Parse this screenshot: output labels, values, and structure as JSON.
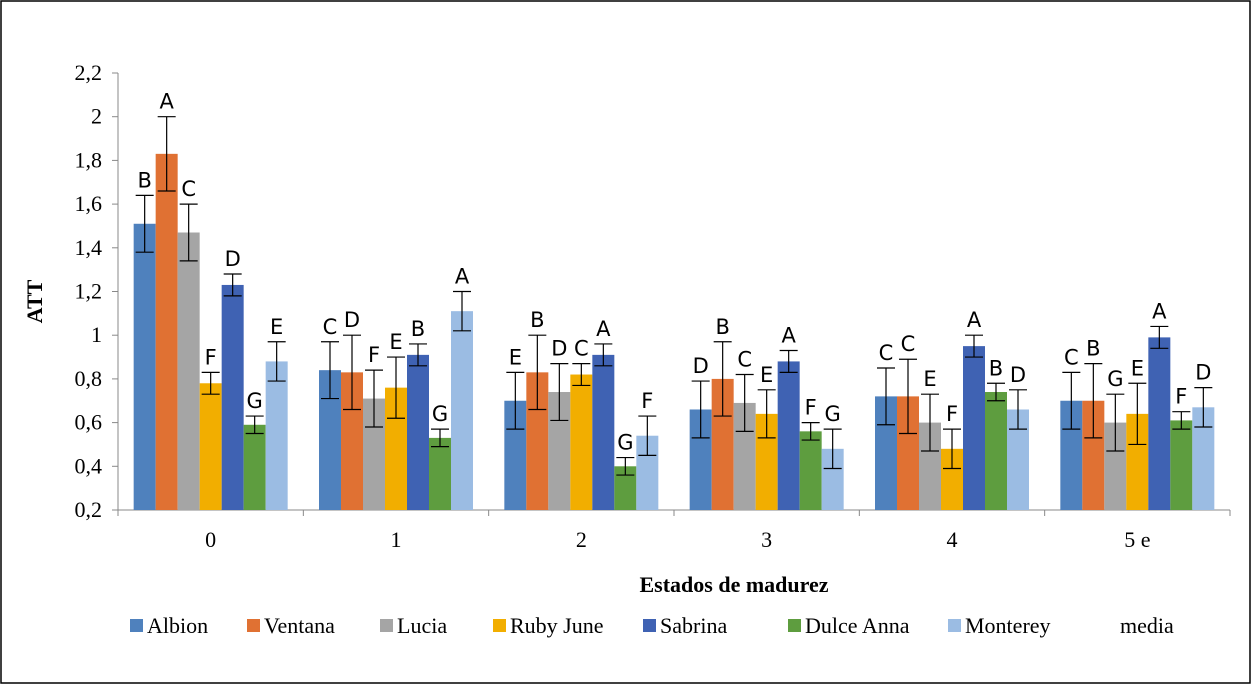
{
  "chart_data": {
    "type": "bar",
    "xlabel": "Estados de madurez",
    "ylabel": "ATT",
    "ylim": [
      0.2,
      2.2
    ],
    "ytick_step": 0.2,
    "grid": false,
    "legend_position": "bottom",
    "categories": [
      "0",
      "1",
      "2",
      "3",
      "4",
      "5 e"
    ],
    "yticks": [
      "0,2",
      "0,4",
      "0,6",
      "0,8",
      "1",
      "1,2",
      "1,4",
      "1,6",
      "1,8",
      "2",
      "2,2"
    ],
    "series": [
      {
        "name": "Albion",
        "color": "#4F81BD",
        "values": [
          1.51,
          0.84,
          0.7,
          0.66,
          0.72,
          0.7
        ],
        "errors": [
          0.13,
          0.13,
          0.13,
          0.13,
          0.13,
          0.13
        ],
        "letters": [
          "B",
          "C",
          "E",
          "D",
          "C",
          "C"
        ]
      },
      {
        "name": "Ventana",
        "color": "#E07133",
        "values": [
          1.83,
          0.83,
          0.83,
          0.8,
          0.72,
          0.7
        ],
        "errors": [
          0.17,
          0.17,
          0.17,
          0.17,
          0.17,
          0.17
        ],
        "letters": [
          "A",
          "D",
          "B",
          "B",
          "C",
          "B"
        ]
      },
      {
        "name": "Lucia",
        "color": "#A5A5A5",
        "values": [
          1.47,
          0.71,
          0.74,
          0.69,
          0.6,
          0.6
        ],
        "errors": [
          0.13,
          0.13,
          0.13,
          0.13,
          0.13,
          0.13
        ],
        "letters": [
          "C",
          "F",
          "D",
          "C",
          "E",
          "G"
        ]
      },
      {
        "name": "Ruby June",
        "color": "#F2AE00",
        "values": [
          0.78,
          0.76,
          0.82,
          0.64,
          0.48,
          0.64
        ],
        "errors": [
          0.05,
          0.14,
          0.05,
          0.11,
          0.09,
          0.14
        ],
        "letters": [
          "F",
          "E",
          "C",
          "E",
          "F",
          "E"
        ]
      },
      {
        "name": "Sabrina",
        "color": "#3F62B3",
        "values": [
          1.23,
          0.91,
          0.91,
          0.88,
          0.95,
          0.99
        ],
        "errors": [
          0.05,
          0.05,
          0.05,
          0.05,
          0.05,
          0.05
        ],
        "letters": [
          "D",
          "B",
          "A",
          "A",
          "A",
          "A"
        ]
      },
      {
        "name": "Dulce Anna",
        "color": "#5E9D3F",
        "values": [
          0.59,
          0.53,
          0.4,
          0.56,
          0.74,
          0.61
        ],
        "errors": [
          0.04,
          0.04,
          0.04,
          0.04,
          0.04,
          0.04
        ],
        "letters": [
          "G",
          "G",
          "G",
          "F",
          "B",
          "F"
        ]
      },
      {
        "name": "Monterey",
        "color": "#9BBCE3",
        "values": [
          0.88,
          1.11,
          0.54,
          0.48,
          0.66,
          0.67
        ],
        "errors": [
          0.09,
          0.09,
          0.09,
          0.09,
          0.09,
          0.09
        ],
        "letters": [
          "E",
          "A",
          "F",
          "G",
          "D",
          "D"
        ]
      }
    ],
    "extra_legend": "media"
  }
}
